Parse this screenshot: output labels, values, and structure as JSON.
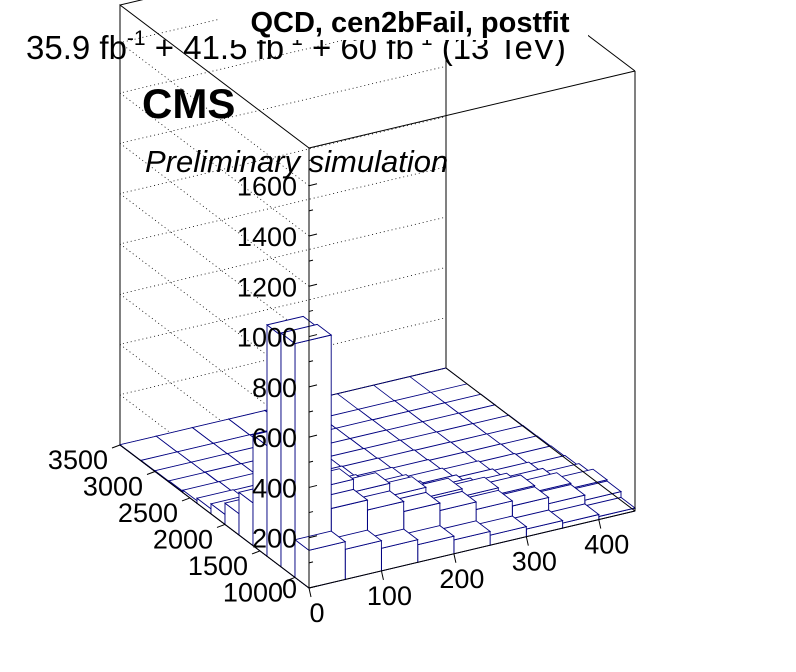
{
  "header": {
    "lumi_prefix": "35.9 fb",
    "lumi_sup1": "-1",
    "lumi_mid1": " + 41.5 fb",
    "lumi_sup2": "-1",
    "lumi_mid2": " + 60 fb",
    "lumi_sup3": "-1",
    "lumi_suffix": " (13 TeV)",
    "title": "QCD, cen2bFail, postfit",
    "cms": "CMS",
    "preliminary": "Preliminary simulation"
  },
  "colors": {
    "frame": "#000000",
    "bar_edge": "#000080",
    "bar_fill": "#ffffff",
    "grid": "#000000"
  },
  "chart_data": {
    "type": "lego3d",
    "title": "QCD, cen2bFail, postfit",
    "xlabel": "",
    "ylabel": "",
    "zlabel": "",
    "xlim": [
      0,
      450
    ],
    "ylim": [
      800,
      3500
    ],
    "zlim": [
      0,
      1750
    ],
    "x_ticks": [
      "0",
      "100",
      "200",
      "300",
      "400"
    ],
    "y_ticks": [
      "1000",
      "1500",
      "2000",
      "2500",
      "3000",
      "3500"
    ],
    "z_ticks": [
      "0",
      "200",
      "400",
      "600",
      "800",
      "1000",
      "1200",
      "1400",
      "1600"
    ],
    "grid": true,
    "x_bin_edges": [
      0,
      50,
      100,
      150,
      200,
      250,
      300,
      350,
      400,
      450
    ],
    "y_bin_edges": [
      800,
      1000,
      1200,
      1400,
      1600,
      1800,
      2000,
      2200,
      2400,
      2600,
      2800,
      3000,
      3200,
      3500
    ],
    "values": [
      [
        150,
        120,
        90,
        70,
        55,
        40,
        30,
        20,
        12
      ],
      [
        930,
        240,
        200,
        160,
        130,
        100,
        80,
        55,
        35
      ],
      [
        920,
        280,
        230,
        180,
        140,
        110,
        85,
        60,
        40
      ],
      [
        440,
        170,
        140,
        110,
        85,
        65,
        50,
        35,
        20
      ],
      [
        170,
        90,
        70,
        55,
        45,
        35,
        25,
        18,
        10
      ],
      [
        85,
        55,
        45,
        35,
        28,
        20,
        15,
        10,
        6
      ],
      [
        40,
        30,
        25,
        20,
        15,
        12,
        8,
        6,
        4
      ],
      [
        20,
        18,
        15,
        12,
        10,
        8,
        6,
        4,
        3
      ],
      [
        10,
        10,
        8,
        7,
        6,
        5,
        4,
        3,
        2
      ],
      [
        5,
        6,
        5,
        4,
        3,
        3,
        2,
        2,
        1
      ],
      [
        3,
        3,
        3,
        2,
        2,
        2,
        1,
        1,
        1
      ],
      [
        2,
        2,
        2,
        1,
        1,
        1,
        1,
        1,
        0
      ],
      [
        1,
        1,
        1,
        1,
        1,
        0,
        0,
        0,
        0
      ]
    ]
  }
}
